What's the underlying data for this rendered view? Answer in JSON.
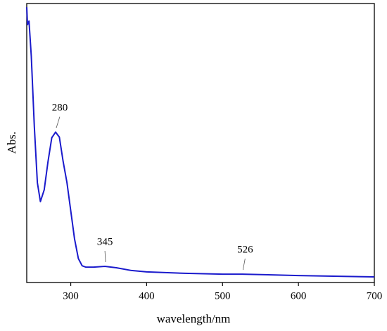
{
  "chart_data": {
    "type": "line",
    "xlabel": "wavelength/nm",
    "ylabel": "Abs.",
    "x": [
      242,
      243,
      245,
      248,
      252,
      256,
      260,
      265,
      270,
      275,
      280,
      285,
      290,
      295,
      300,
      305,
      310,
      315,
      320,
      330,
      345,
      360,
      380,
      400,
      450,
      500,
      526,
      600,
      700
    ],
    "series": [
      {
        "color": "#1a1acc",
        "values": [
          0.987,
          0.924,
          0.937,
          0.811,
          0.559,
          0.358,
          0.29,
          0.332,
          0.433,
          0.519,
          0.539,
          0.521,
          0.433,
          0.358,
          0.257,
          0.156,
          0.086,
          0.06,
          0.055,
          0.055,
          0.058,
          0.053,
          0.043,
          0.038,
          0.033,
          0.03,
          0.03,
          0.025,
          0.02
        ]
      }
    ],
    "xlim": [
      242,
      700
    ],
    "xticks": [
      300,
      400,
      500,
      600,
      700
    ],
    "ylim": [
      0,
      1
    ],
    "annotations": [
      {
        "text": "280",
        "x": 280
      },
      {
        "text": "345",
        "x": 345
      },
      {
        "text": "526",
        "x": 526
      }
    ]
  }
}
